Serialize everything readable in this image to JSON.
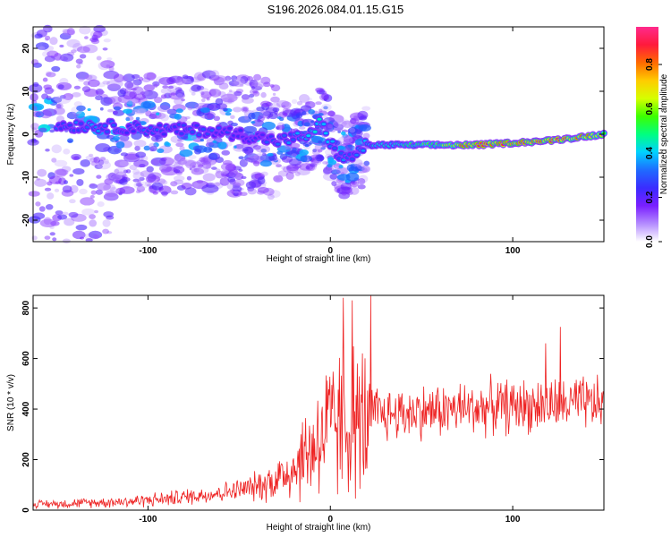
{
  "title": "S196.2026.084.01.15.G15",
  "chart_data": [
    {
      "type": "heatmap",
      "xlabel": "Height of straight line (km)",
      "ylabel": "Frequency (Hz)",
      "xlim": [
        -163,
        150
      ],
      "ylim": [
        -25,
        25
      ],
      "xticks": [
        -100,
        0,
        100
      ],
      "yticks": [
        -20,
        -10,
        0,
        10,
        20
      ],
      "colorbar": {
        "label": "Normalized spectral amplitude",
        "range": [
          0,
          0.97
        ],
        "ticks": [
          "0.0",
          "0.2",
          "0.4",
          "0.6",
          "0.8"
        ],
        "colors": [
          "#ffffff",
          "#b48cff",
          "#7a1fff",
          "#3a2cff",
          "#1f6bff",
          "#00d2ff",
          "#00ff80",
          "#3cff00",
          "#d6ff00",
          "#ffcc00",
          "#ff6a00",
          "#ff1a3c",
          "#ff2a8c"
        ]
      },
      "ridge": {
        "x": [
          -150,
          -130,
          -110,
          -90,
          -70,
          -50,
          -30,
          -20,
          -10,
          -5,
          0,
          5,
          10,
          15,
          20,
          40,
          60,
          80,
          100,
          120,
          140,
          150
        ],
        "frequency": [
          2,
          2,
          1.5,
          1,
          1,
          0,
          -1.5,
          -1,
          0,
          3,
          -2,
          -5,
          -6,
          -4,
          -2.5,
          -2.5,
          -2.5,
          -2.5,
          -2,
          -1.5,
          -0.5,
          0
        ],
        "amplitude": [
          0.3,
          0.35,
          0.3,
          0.3,
          0.3,
          0.25,
          0.3,
          0.35,
          0.4,
          0.45,
          0.35,
          0.35,
          0.3,
          0.35,
          0.4,
          0.5,
          0.6,
          0.9,
          0.85,
          0.85,
          0.8,
          0.7
        ]
      }
    },
    {
      "type": "line",
      "xlabel": "Height of straight line (km)",
      "ylabel": "SNR (10 * v/v)",
      "xlim": [
        -163,
        150
      ],
      "ylim": [
        0,
        850
      ],
      "xticks": [
        -100,
        0,
        100
      ],
      "yticks": [
        0,
        200,
        400,
        600,
        800
      ],
      "series": [
        {
          "color": "#ee2222",
          "x": [
            -163,
            -150,
            -130,
            -110,
            -90,
            -70,
            -50,
            -40,
            -30,
            -20,
            -10,
            -5,
            0,
            5,
            10,
            15,
            20,
            22,
            25,
            30,
            40,
            50,
            60,
            70,
            80,
            90,
            100,
            110,
            120,
            130,
            140,
            150
          ],
          "mean": [
            25,
            25,
            30,
            35,
            45,
            60,
            80,
            95,
            120,
            170,
            250,
            300,
            320,
            340,
            330,
            340,
            350,
            360,
            380,
            380,
            385,
            390,
            395,
            400,
            405,
            410,
            410,
            415,
            415,
            420,
            420,
            420
          ],
          "spread": [
            15,
            18,
            20,
            25,
            30,
            35,
            45,
            60,
            90,
            140,
            220,
            280,
            300,
            320,
            320,
            320,
            320,
            150,
            120,
            110,
            110,
            110,
            110,
            110,
            110,
            110,
            110,
            110,
            110,
            110,
            110,
            110
          ]
        }
      ],
      "peaks": [
        {
          "x": 7,
          "y": 840
        },
        {
          "x": 12,
          "y": 830
        },
        {
          "x": 22,
          "y": 850
        },
        {
          "x": 126,
          "y": 725
        },
        {
          "x": 118,
          "y": 660
        }
      ]
    }
  ]
}
